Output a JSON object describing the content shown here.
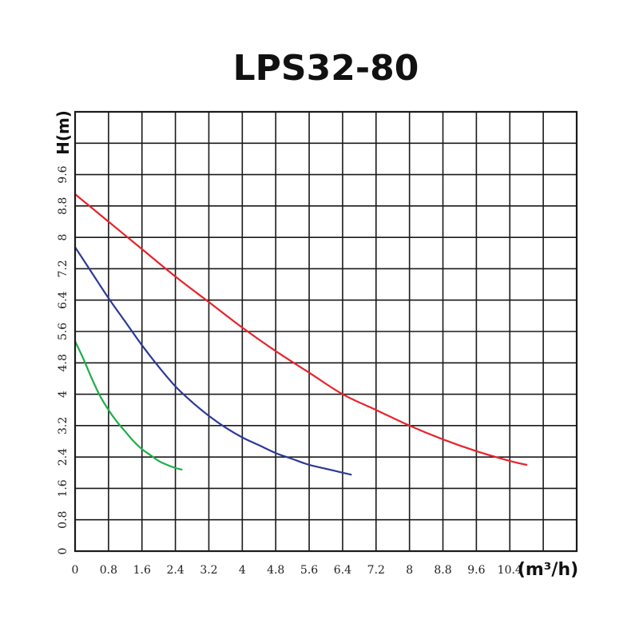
{
  "chart_data": {
    "type": "line",
    "title": "LPS32-80",
    "ylabel": "H(m)",
    "xlabel": "(m³/h)",
    "xlim": [
      0,
      12
    ],
    "ylim": [
      0,
      11.2
    ],
    "grid": true,
    "x_ticks": [
      "0",
      "0.8",
      "1.6",
      "2.4",
      "3.2",
      "4",
      "4.8",
      "5.6",
      "6.4",
      "7.2",
      "8",
      "8.8",
      "9.6",
      "10.4"
    ],
    "x_tick_values": [
      0,
      0.8,
      1.6,
      2.4,
      3.2,
      4,
      4.8,
      5.6,
      6.4,
      7.2,
      8,
      8.8,
      9.6,
      10.4
    ],
    "y_ticks": [
      "0",
      "0.8",
      "1.6",
      "2.4",
      "3.2",
      "4",
      "4.8",
      "5.6",
      "6.4",
      "7.2",
      "8",
      "8.8",
      "9.6"
    ],
    "y_tick_values": [
      0,
      0.8,
      1.6,
      2.4,
      3.2,
      4,
      4.8,
      5.6,
      6.4,
      7.2,
      8,
      8.8,
      9.6
    ],
    "series": [
      {
        "color": "#e8232b",
        "x": [
          0,
          0.8,
          1.6,
          2.4,
          3.2,
          4.0,
          4.8,
          5.6,
          6.4,
          7.2,
          8.0,
          8.8,
          9.6,
          10.4,
          10.8
        ],
        "y": [
          9.1,
          8.4,
          7.7,
          7.0,
          6.35,
          5.7,
          5.1,
          4.55,
          4.0,
          3.6,
          3.2,
          2.85,
          2.55,
          2.3,
          2.2
        ]
      },
      {
        "color": "#2e3a96",
        "x": [
          0,
          0.4,
          0.8,
          1.2,
          1.6,
          2.0,
          2.4,
          2.8,
          3.2,
          3.6,
          4.0,
          4.4,
          4.8,
          5.2,
          5.6,
          6.0,
          6.4,
          6.6
        ],
        "y": [
          7.75,
          7.1,
          6.45,
          5.85,
          5.25,
          4.7,
          4.2,
          3.8,
          3.45,
          3.15,
          2.9,
          2.7,
          2.5,
          2.35,
          2.2,
          2.1,
          2.0,
          1.95
        ]
      },
      {
        "color": "#1fae4a",
        "x": [
          0,
          0.2,
          0.4,
          0.6,
          0.8,
          1.0,
          1.2,
          1.4,
          1.6,
          1.8,
          2.0,
          2.2,
          2.4,
          2.55
        ],
        "y": [
          5.35,
          4.9,
          4.4,
          3.95,
          3.6,
          3.3,
          3.05,
          2.8,
          2.6,
          2.45,
          2.3,
          2.2,
          2.12,
          2.08
        ]
      }
    ]
  }
}
